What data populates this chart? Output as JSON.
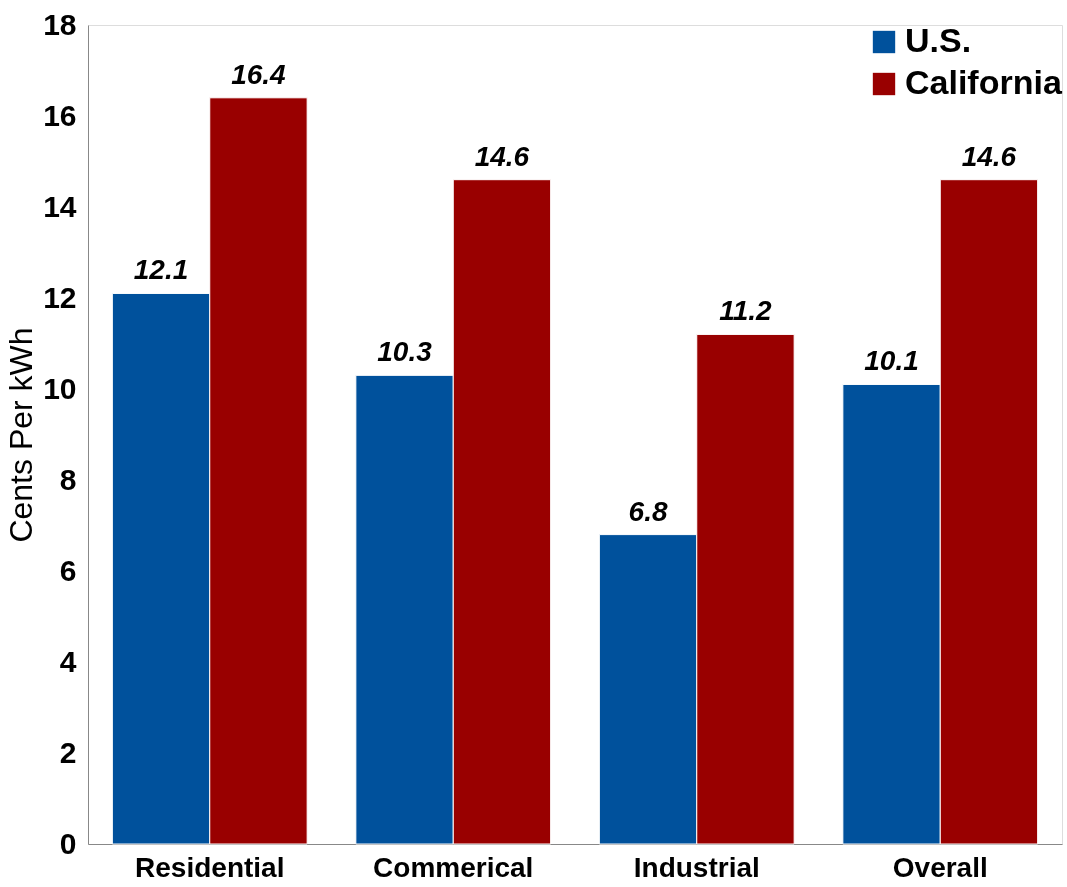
{
  "chart_data": {
    "type": "bar",
    "ylabel": "Cents Per kWh",
    "categories": [
      "Residential",
      "Commerical",
      "Industrial",
      "Overall"
    ],
    "series": [
      {
        "name": "U.S.",
        "color": "#00519c",
        "values": [
          12.1,
          10.3,
          6.8,
          10.1
        ]
      },
      {
        "name": "California",
        "color": "#990000",
        "values": [
          16.4,
          14.6,
          11.2,
          14.6
        ]
      }
    ],
    "ylim": [
      0,
      18
    ],
    "yticks": [
      0,
      2,
      4,
      6,
      8,
      10,
      12,
      14,
      16,
      18
    ],
    "grid": false,
    "legend": "top right",
    "data_labels": true
  }
}
